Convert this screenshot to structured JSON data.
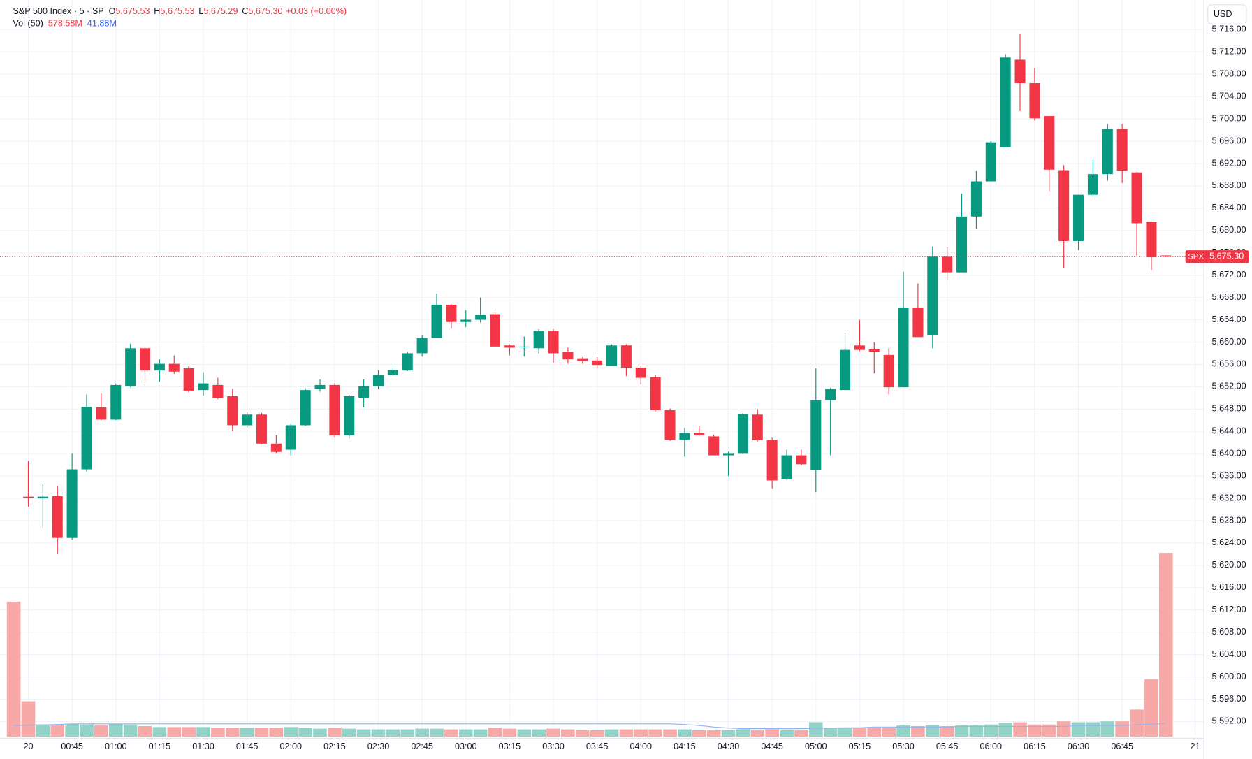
{
  "chart_data": {
    "type": "candlestick",
    "title": "S&P 500 Index · 5 · SP",
    "ohlc_legend": [
      {
        "key": "O",
        "value": "5,675.53"
      },
      {
        "key": "H",
        "value": "5,675.53"
      },
      {
        "key": "L",
        "value": "5,675.29"
      },
      {
        "key": "C",
        "value": "5,675.30"
      }
    ],
    "change": "+0.03 (+0.00%)",
    "volume_legend": {
      "name": "Vol (50)",
      "value": "578.58M",
      "ma": "41.88M"
    },
    "currency": "USD",
    "last_price": {
      "symbol": "SPX",
      "value": 5675.3,
      "label": "5,675.30"
    },
    "up_color": "#089981",
    "down_color": "#f23645",
    "volume_up_color": "#92d2c7",
    "volume_down_color": "#f7a9a7",
    "ma_color": "#90b4f4",
    "grid": true,
    "x": [
      0,
      1,
      2,
      3,
      4,
      5,
      6,
      7,
      8,
      9,
      10,
      11,
      12,
      13,
      14,
      15,
      16,
      17,
      18,
      19,
      20,
      21,
      22,
      23,
      24,
      25,
      26,
      27,
      28,
      29,
      30,
      31,
      32,
      33,
      34,
      35,
      36,
      37,
      38,
      39,
      40,
      41,
      42,
      43,
      44,
      45,
      46,
      47,
      48,
      49,
      50,
      51,
      52,
      53,
      54,
      55,
      56,
      57,
      58,
      59,
      60,
      61,
      62,
      63,
      64,
      65,
      66,
      67,
      68,
      69,
      70,
      71,
      72,
      73,
      74,
      75,
      76,
      77,
      78,
      79
    ],
    "xlim": [
      -0.94,
      81.6
    ],
    "xticks": [
      {
        "value": 1,
        "label": "20"
      },
      {
        "value": 4,
        "label": "00:45"
      },
      {
        "value": 7,
        "label": "01:00"
      },
      {
        "value": 10,
        "label": "01:15"
      },
      {
        "value": 13,
        "label": "01:30"
      },
      {
        "value": 16,
        "label": "01:45"
      },
      {
        "value": 19,
        "label": "02:00"
      },
      {
        "value": 22,
        "label": "02:15"
      },
      {
        "value": 25,
        "label": "02:30"
      },
      {
        "value": 28,
        "label": "02:45"
      },
      {
        "value": 31,
        "label": "03:00"
      },
      {
        "value": 34,
        "label": "03:15"
      },
      {
        "value": 37,
        "label": "03:30"
      },
      {
        "value": 40,
        "label": "03:45"
      },
      {
        "value": 43,
        "label": "04:00"
      },
      {
        "value": 46,
        "label": "04:15"
      },
      {
        "value": 49,
        "label": "04:30"
      },
      {
        "value": 52,
        "label": "04:45"
      },
      {
        "value": 55,
        "label": "05:00"
      },
      {
        "value": 58,
        "label": "05:15"
      },
      {
        "value": 61,
        "label": "05:30"
      },
      {
        "value": 64,
        "label": "05:45"
      },
      {
        "value": 67,
        "label": "06:00"
      },
      {
        "value": 70,
        "label": "06:15"
      },
      {
        "value": 73,
        "label": "06:30"
      },
      {
        "value": 76,
        "label": "06:45"
      },
      {
        "value": 81,
        "label": "21"
      }
    ],
    "open": [
      null,
      5632.3,
      5632.0,
      5632.4,
      5624.9,
      5637.2,
      5648.3,
      5646.1,
      5652.1,
      5658.9,
      5654.9,
      5656.1,
      5655.3,
      5651.4,
      5652.3,
      5650.3,
      5645.1,
      5647.0,
      5641.8,
      5640.7,
      5645.1,
      5651.6,
      5652.3,
      5643.3,
      5650.0,
      5652.1,
      5654.1,
      5654.9,
      5658.0,
      5660.7,
      5666.7,
      5663.6,
      5664.0,
      5665.0,
      5659.4,
      5659.1,
      5658.9,
      5662.0,
      5658.3,
      5657.1,
      5656.7,
      5655.7,
      5659.4,
      5655.4,
      5653.7,
      5647.8,
      5642.5,
      5643.7,
      5643.1,
      5639.7,
      5640.1,
      5647.0,
      5642.5,
      5635.4,
      5639.7,
      5637.1,
      5649.6,
      5651.4,
      5659.4,
      5658.7,
      5657.7,
      5651.9,
      5666.2,
      5661.2,
      5675.3,
      5672.5,
      5682.5,
      5688.8,
      5694.9,
      5710.6,
      5706.4,
      5700.5,
      5690.8,
      5678.1,
      5686.4,
      5690.1,
      5698.2,
      5690.4,
      5681.5,
      5675.53
    ],
    "high": [
      null,
      5638.7,
      5634.5,
      5634.2,
      5640.1,
      5650.6,
      5650.8,
      5652.6,
      5659.7,
      5659.2,
      5656.9,
      5657.6,
      5655.7,
      5654.6,
      5653.6,
      5651.6,
      5647.4,
      5647.3,
      5643.3,
      5645.4,
      5651.7,
      5653.3,
      5652.6,
      5650.5,
      5653.3,
      5655.0,
      5655.4,
      5658.3,
      5661.2,
      5668.7,
      5666.8,
      5665.7,
      5668.0,
      5665.3,
      5659.6,
      5661.0,
      5662.3,
      5662.3,
      5659.0,
      5657.3,
      5657.3,
      5659.6,
      5659.6,
      5655.7,
      5654.1,
      5648.1,
      5644.6,
      5645.0,
      5643.4,
      5640.3,
      5647.3,
      5648.0,
      5643.0,
      5640.7,
      5640.7,
      5655.3,
      5651.8,
      5661.7,
      5664.0,
      5660.0,
      5658.9,
      5672.6,
      5670.5,
      5677.1,
      5677.1,
      5686.6,
      5690.7,
      5696.0,
      5711.6,
      5715.3,
      5709.1,
      5700.5,
      5691.7,
      5686.4,
      5692.7,
      5699.1,
      5699.1,
      5690.5,
      5681.5,
      5675.53
    ],
    "low": [
      null,
      5630.5,
      5626.8,
      5622.1,
      5624.6,
      5636.8,
      5646.0,
      5646.0,
      5651.9,
      5652.7,
      5652.9,
      5654.3,
      5651.0,
      5650.4,
      5649.8,
      5644.1,
      5644.7,
      5641.7,
      5640.1,
      5639.7,
      5645.0,
      5651.1,
      5643.0,
      5642.7,
      5648.3,
      5651.6,
      5654.0,
      5654.8,
      5657.4,
      5660.7,
      5662.4,
      5662.7,
      5663.5,
      5659.2,
      5657.6,
      5657.4,
      5658.0,
      5656.3,
      5656.1,
      5656.1,
      5655.4,
      5655.7,
      5653.9,
      5652.4,
      5647.6,
      5642.3,
      5639.5,
      5643.2,
      5639.7,
      5636.0,
      5640.0,
      5642.2,
      5633.8,
      5635.3,
      5637.9,
      5633.1,
      5639.7,
      5651.4,
      5658.4,
      5654.4,
      5650.6,
      5651.9,
      5660.9,
      5658.9,
      5671.2,
      5672.5,
      5680.3,
      5688.8,
      5694.9,
      5701.4,
      5699.7,
      5686.9,
      5673.2,
      5676.5,
      5686.0,
      5688.9,
      5688.5,
      5675.5,
      5672.9,
      5675.29
    ],
    "close": [
      null,
      5632.1,
      5632.3,
      5624.9,
      5637.2,
      5648.4,
      5646.1,
      5652.3,
      5658.9,
      5654.9,
      5656.1,
      5654.7,
      5651.3,
      5652.6,
      5650.0,
      5645.1,
      5647.0,
      5641.8,
      5640.3,
      5645.1,
      5651.4,
      5652.3,
      5643.3,
      5650.3,
      5652.1,
      5654.1,
      5655.0,
      5658.0,
      5660.7,
      5666.7,
      5663.6,
      5664.0,
      5664.9,
      5659.2,
      5659.0,
      5659.2,
      5662.0,
      5658.0,
      5656.9,
      5656.6,
      5655.9,
      5659.4,
      5655.4,
      5653.6,
      5647.8,
      5642.5,
      5643.7,
      5643.3,
      5639.7,
      5640.1,
      5647.1,
      5642.4,
      5635.2,
      5639.7,
      5638.1,
      5649.6,
      5651.6,
      5658.6,
      5658.6,
      5658.3,
      5651.9,
      5666.2,
      5660.9,
      5675.3,
      5672.5,
      5682.5,
      5688.8,
      5695.8,
      5711.0,
      5706.4,
      5700.1,
      5690.9,
      5678.1,
      5686.4,
      5690.1,
      5698.2,
      5690.7,
      5681.3,
      5675.2,
      5675.3
    ],
    "volume": [
      425,
      111,
      38,
      35,
      40,
      38,
      35,
      40,
      38,
      33,
      30,
      30,
      30,
      30,
      28,
      28,
      28,
      28,
      28,
      30,
      28,
      25,
      28,
      25,
      23,
      23,
      23,
      23,
      25,
      25,
      23,
      23,
      23,
      28,
      25,
      23,
      23,
      25,
      23,
      20,
      20,
      23,
      23,
      23,
      23,
      23,
      23,
      20,
      20,
      20,
      23,
      20,
      23,
      20,
      20,
      45,
      28,
      28,
      28,
      28,
      28,
      35,
      33,
      35,
      33,
      35,
      35,
      38,
      43,
      45,
      38,
      38,
      48,
      45,
      45,
      48,
      48,
      85,
      181,
      578.58
    ],
    "ma": [
      35,
      36,
      37,
      38,
      40,
      40,
      40,
      40,
      40,
      40,
      40,
      40,
      40,
      40,
      40,
      40,
      40,
      40,
      40,
      40,
      40,
      40,
      40,
      40,
      40,
      40,
      40,
      40,
      40,
      40,
      40,
      40,
      40,
      40,
      40,
      40,
      40,
      40,
      40,
      40,
      40,
      40,
      40,
      40,
      40,
      40,
      38,
      35,
      30,
      27,
      25,
      25,
      25,
      25,
      25,
      26,
      27,
      28,
      28,
      30,
      30,
      30,
      30,
      30,
      30,
      32,
      32,
      32,
      32,
      32,
      32,
      32,
      32,
      35,
      35,
      35,
      35,
      37,
      39,
      41.88
    ],
    "ylim": [
      5589.3,
      5721.3
    ],
    "yticks": [
      {
        "value": 5592,
        "label": "5,592.00"
      },
      {
        "value": 5596,
        "label": "5,596.00"
      },
      {
        "value": 5600,
        "label": "5,600.00"
      },
      {
        "value": 5604,
        "label": "5,604.00"
      },
      {
        "value": 5608,
        "label": "5,608.00"
      },
      {
        "value": 5612,
        "label": "5,612.00"
      },
      {
        "value": 5616,
        "label": "5,616.00"
      },
      {
        "value": 5620,
        "label": "5,620.00"
      },
      {
        "value": 5624,
        "label": "5,624.00"
      },
      {
        "value": 5628,
        "label": "5,628.00"
      },
      {
        "value": 5632,
        "label": "5,632.00"
      },
      {
        "value": 5636,
        "label": "5,636.00"
      },
      {
        "value": 5640,
        "label": "5,640.00"
      },
      {
        "value": 5644,
        "label": "5,644.00"
      },
      {
        "value": 5648,
        "label": "5,648.00"
      },
      {
        "value": 5652,
        "label": "5,652.00"
      },
      {
        "value": 5656,
        "label": "5,656.00"
      },
      {
        "value": 5660,
        "label": "5,660.00"
      },
      {
        "value": 5664,
        "label": "5,664.00"
      },
      {
        "value": 5668,
        "label": "5,668.00"
      },
      {
        "value": 5672,
        "label": "5,672.00"
      },
      {
        "value": 5676,
        "label": "5,676.00"
      },
      {
        "value": 5680,
        "label": "5,680.00"
      },
      {
        "value": 5684,
        "label": "5,684.00"
      },
      {
        "value": 5688,
        "label": "5,688.00"
      },
      {
        "value": 5692,
        "label": "5,692.00"
      },
      {
        "value": 5696,
        "label": "5,696.00"
      },
      {
        "value": 5700,
        "label": "5,700.00"
      },
      {
        "value": 5704,
        "label": "5,704.00"
      },
      {
        "value": 5708,
        "label": "5,708.00"
      },
      {
        "value": 5712,
        "label": "5,712.00"
      },
      {
        "value": 5716,
        "label": "5,716.00"
      }
    ],
    "y2lim": [
      0,
      600
    ]
  }
}
